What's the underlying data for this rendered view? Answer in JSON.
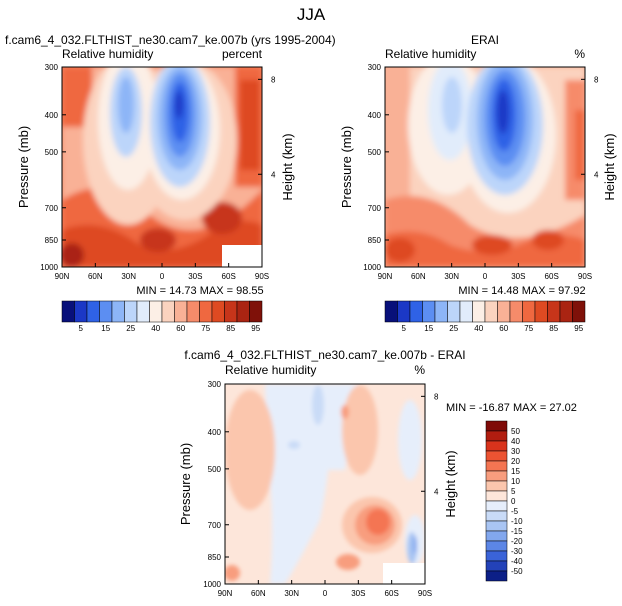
{
  "title": "JJA",
  "colors": {
    "model_scale": [
      "#08107a",
      "#1b38c6",
      "#2f62e6",
      "#5c8ef2",
      "#8db5f7",
      "#bcd5fa",
      "#e1ecfb",
      "#fcefe6",
      "#fbd3bf",
      "#f9b196",
      "#f68b6a",
      "#ef6840",
      "#de4a22",
      "#c7351a",
      "#aa2412",
      "#7f1109"
    ],
    "diff_scale": [
      "#7f0b08",
      "#b11d10",
      "#d9331c",
      "#ec5332",
      "#f47552",
      "#f89d7e",
      "#fbc6ad",
      "#fde6da",
      "#e6eefb",
      "#c9dbf7",
      "#a9c5f3",
      "#82a7ee",
      "#5c86e6",
      "#3a63d8",
      "#2342b8",
      "#0c1f87"
    ]
  },
  "chart_data": [
    {
      "type": "heatmap",
      "id": "model",
      "title": "f.cam6_4_032.FLTHIST_ne30.cam7_ke.007b (yrs 1995-2004)",
      "subtitle_left": "Relative humidity",
      "subtitle_right": "percent",
      "xlabel": "",
      "ylabel": "Pressure (mb)",
      "y2label": "Height (km)",
      "x_ticks": [
        "90N",
        "60N",
        "30N",
        "0",
        "30S",
        "60S",
        "90S"
      ],
      "y_ticks": [
        "300",
        "400",
        "500",
        "700",
        "850",
        "1000"
      ],
      "y2_ticks": [
        "8",
        "4"
      ],
      "stats": {
        "min_label": "MIN =",
        "min": "14.73",
        "max_label": "MAX =",
        "max": "98.55"
      },
      "colorbar_labels": [
        "5",
        "15",
        "25",
        "40",
        "60",
        "75",
        "85",
        "95"
      ],
      "colorbar_orientation": "horizontal"
    },
    {
      "type": "heatmap",
      "id": "obs",
      "title": "ERAI",
      "subtitle_left": "Relative humidity",
      "subtitle_right": "%",
      "xlabel": "",
      "ylabel": "Pressure (mb)",
      "y2label": "Height (km)",
      "x_ticks": [
        "90N",
        "60N",
        "30N",
        "0",
        "30S",
        "60S",
        "90S"
      ],
      "y_ticks": [
        "300",
        "400",
        "500",
        "700",
        "850",
        "1000"
      ],
      "y2_ticks": [
        "8",
        "4"
      ],
      "stats": {
        "min_label": "MIN =",
        "min": "14.48",
        "max_label": "MAX =",
        "max": "97.92"
      },
      "colorbar_labels": [
        "5",
        "15",
        "25",
        "40",
        "60",
        "75",
        "85",
        "95"
      ],
      "colorbar_orientation": "horizontal"
    },
    {
      "type": "heatmap",
      "id": "diff",
      "title": "f.cam6_4_032.FLTHIST_ne30.cam7_ke.007b - ERAI",
      "subtitle_left": "Relative humidity",
      "subtitle_right": "%",
      "xlabel": "",
      "ylabel": "Pressure (mb)",
      "y2label": "Height (km)",
      "x_ticks": [
        "90N",
        "60N",
        "30N",
        "0",
        "30S",
        "60S",
        "90S"
      ],
      "y_ticks": [
        "300",
        "400",
        "500",
        "700",
        "850",
        "1000"
      ],
      "y2_ticks": [
        "8",
        "4"
      ],
      "stats": {
        "min_label": "MIN =",
        "min": "-16.87",
        "max_label": "MAX =",
        "max": "27.02"
      },
      "colorbar_labels": [
        "50",
        "40",
        "30",
        "20",
        "15",
        "10",
        "5",
        "0",
        "-5",
        "-10",
        "-15",
        "-20",
        "-30",
        "-40",
        "-50"
      ],
      "colorbar_orientation": "vertical"
    }
  ]
}
